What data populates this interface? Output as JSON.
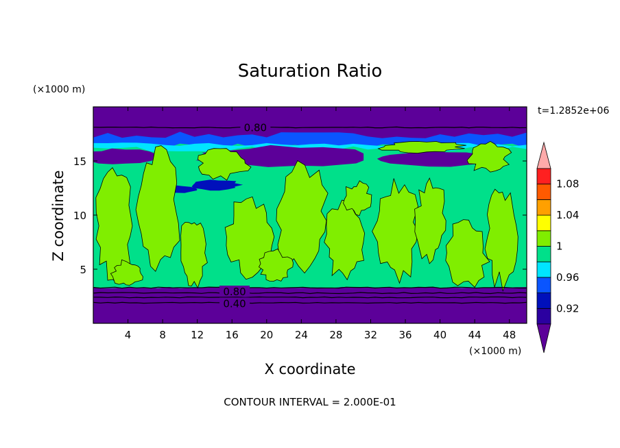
{
  "chart_data": {
    "type": "contour",
    "title": "Saturation Ratio",
    "xlabel": "X coordinate",
    "ylabel": "Z coordinate",
    "x_unit": "(×1000 m)",
    "y_unit": "(×1000 m)",
    "time_label": "t=1.2852e+06",
    "xlim": [
      0,
      50
    ],
    "ylim": [
      0,
      20
    ],
    "x_ticks": [
      "4",
      "8",
      "12",
      "16",
      "20",
      "24",
      "28",
      "32",
      "36",
      "40",
      "44",
      "48"
    ],
    "y_ticks": [
      "5",
      "10",
      "15"
    ],
    "contour_labels": [
      "0.80",
      "0.80",
      "0.40"
    ],
    "contour_interval_text": "CONTOUR INTERVAL = 2.000E-01",
    "colorbar": {
      "levels": [
        0.9,
        0.92,
        0.94,
        0.96,
        0.98,
        1.0,
        1.02,
        1.04,
        1.06,
        1.08,
        1.1
      ],
      "tick_labels": [
        "0.92",
        "0.96",
        "1",
        "1.04",
        "1.08"
      ],
      "colors": [
        "#5c0099",
        "#2b00a0",
        "#0010bb",
        "#0a55ff",
        "#00e5ff",
        "#00e08a",
        "#80ee00",
        "#ffff00",
        "#ffa000",
        "#ff5a00",
        "#ff2020",
        "#ffaaaa"
      ]
    },
    "field_bands": [
      {
        "from_z": 0.0,
        "to_z": 3.3,
        "value": "< 0.90"
      },
      {
        "from_z": 3.3,
        "to_z": 16.7,
        "value": "0.98 - 1.02"
      },
      {
        "from_z": 16.7,
        "to_z": 18.0,
        "value": "0.90 - 0.96"
      },
      {
        "from_z": 18.0,
        "to_z": 20.0,
        "value": "< 0.90"
      }
    ]
  }
}
